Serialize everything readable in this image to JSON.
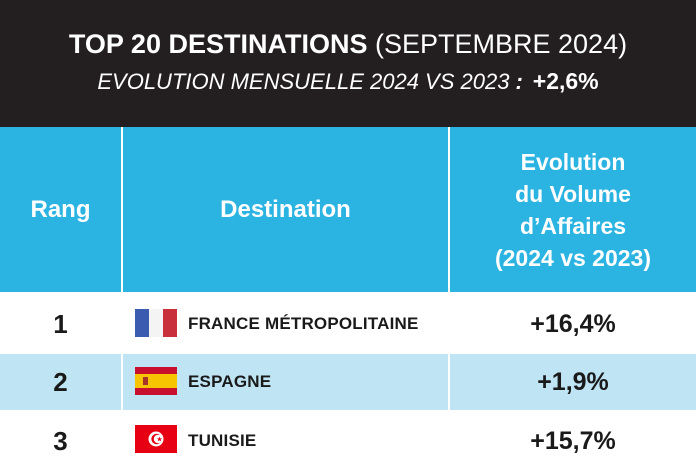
{
  "header": {
    "title_bold": "TOP 20 DESTINATIONS",
    "title_light": "(SEPTEMBRE 2024)",
    "subtitle": "EVOLUTION MENSUELLE 2024 VS 2023",
    "subtitle_colon": ":",
    "subtitle_value": "+2,6%"
  },
  "columns": {
    "rank": "Rang",
    "destination": "Destination",
    "evolution_lines": [
      "Evolution",
      "du Volume",
      "d’Affaires",
      "(2024 vs 2023)"
    ]
  },
  "rows": [
    {
      "rank": "1",
      "destination": "FRANCE MÉTROPOLITAINE",
      "evolution": "+16,4%",
      "flag": "france-flag"
    },
    {
      "rank": "2",
      "destination": "ESPAGNE",
      "evolution": "+1,9%",
      "flag": "spain-flag"
    },
    {
      "rank": "3",
      "destination": "TUNISIE",
      "evolution": "+15,7%",
      "flag": "tunisia-flag"
    }
  ],
  "colors": {
    "header_bg": "#231f20",
    "column_header_bg": "#2bb3e2",
    "alt_row_bg": "#bfe4f3"
  }
}
